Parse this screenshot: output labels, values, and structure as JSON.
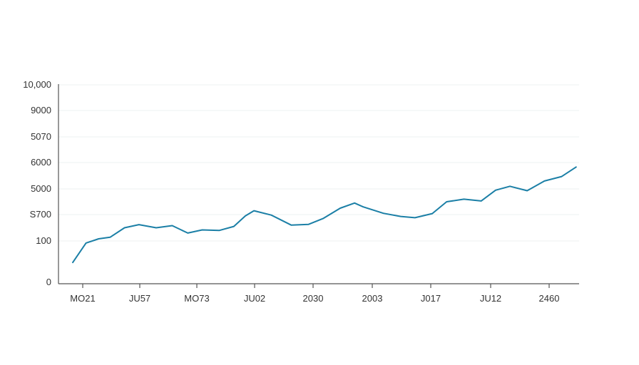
{
  "chart_data": {
    "type": "line",
    "title": "",
    "xlabel": "",
    "ylabel": "",
    "grid": true,
    "legend": "none",
    "line_color": "#1b7fa6",
    "y_tick_labels": [
      "0",
      "100",
      "S700",
      "5000",
      "6000",
      "5070",
      "9000",
      "10,000"
    ],
    "x_tick_labels": [
      "MO21",
      "JU57",
      "MO73",
      "JU02",
      "2030",
      "2003",
      "J017",
      "JU12",
      "2460"
    ],
    "ylim": [
      0,
      7.8
    ],
    "xlim": [
      -0.15,
      8.9
    ],
    "series": [
      {
        "x": [
          -0.15,
          0.08,
          0.3,
          0.5,
          0.75,
          1.0,
          1.3,
          1.58,
          1.85,
          2.1,
          2.4,
          2.65,
          2.85,
          3.0,
          3.3,
          3.65,
          3.95,
          4.2,
          4.5,
          4.75,
          4.9,
          5.25,
          5.55,
          5.8,
          6.1,
          6.35,
          6.65,
          6.95,
          7.2,
          7.45,
          7.75,
          8.05,
          8.35,
          8.6
        ],
        "y": [
          0.48,
          0.95,
          1.08,
          1.14,
          1.5,
          1.62,
          1.5,
          1.58,
          1.3,
          1.42,
          1.4,
          1.55,
          1.95,
          2.15,
          1.98,
          1.6,
          1.63,
          1.85,
          2.25,
          2.45,
          2.3,
          2.05,
          1.93,
          1.88,
          2.04,
          2.5,
          2.6,
          2.53,
          2.95,
          3.1,
          2.93,
          3.3,
          3.47,
          3.83
        ]
      }
    ]
  }
}
